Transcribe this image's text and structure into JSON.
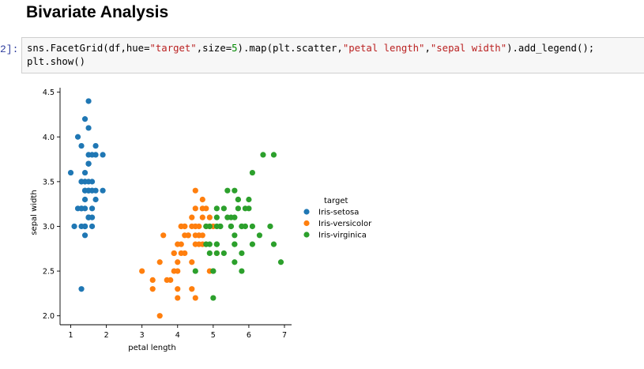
{
  "heading": "Bivariate Analysis",
  "cell": {
    "prompt": "2]:",
    "code": {
      "l1_a": "sns.FacetGrid(df,hue=",
      "l1_b": "\"target\"",
      "l1_c": ",size=",
      "l1_d": "5",
      "l1_e": ").map(plt.scatter,",
      "l1_f": "\"petal length\"",
      "l1_g": ",",
      "l1_h": "\"sepal width\"",
      "l1_i": ").add_legend();",
      "l2": "plt.show()"
    }
  },
  "colors": {
    "setosa": "#1f77b4",
    "versicolor": "#ff7f0e",
    "virginica": "#2ca02c"
  },
  "chart_data": {
    "type": "scatter",
    "xlabel": "petal length",
    "ylabel": "sepal width",
    "xlim": [
      0.7,
      7.2
    ],
    "ylim": [
      1.9,
      4.55
    ],
    "xticks": [
      "1",
      "2",
      "3",
      "4",
      "5",
      "6",
      "7"
    ],
    "yticks": [
      "2.0",
      "2.5",
      "3.0",
      "3.5",
      "4.0",
      "4.5"
    ],
    "legend_title": "target",
    "legend_position": "right",
    "series": [
      {
        "name": "Iris-setosa",
        "points": [
          [
            1.4,
            3.5
          ],
          [
            1.4,
            3.0
          ],
          [
            1.3,
            3.2
          ],
          [
            1.5,
            3.1
          ],
          [
            1.4,
            3.6
          ],
          [
            1.7,
            3.9
          ],
          [
            1.4,
            3.4
          ],
          [
            1.5,
            3.4
          ],
          [
            1.4,
            2.9
          ],
          [
            1.5,
            3.1
          ],
          [
            1.5,
            3.7
          ],
          [
            1.6,
            3.4
          ],
          [
            1.4,
            3.0
          ],
          [
            1.1,
            3.0
          ],
          [
            1.2,
            4.0
          ],
          [
            1.5,
            4.4
          ],
          [
            1.3,
            3.9
          ],
          [
            1.4,
            3.5
          ],
          [
            1.7,
            3.8
          ],
          [
            1.5,
            3.8
          ],
          [
            1.7,
            3.4
          ],
          [
            1.5,
            3.7
          ],
          [
            1.0,
            3.6
          ],
          [
            1.7,
            3.3
          ],
          [
            1.9,
            3.4
          ],
          [
            1.6,
            3.0
          ],
          [
            1.6,
            3.4
          ],
          [
            1.5,
            3.5
          ],
          [
            1.4,
            3.4
          ],
          [
            1.6,
            3.2
          ],
          [
            1.6,
            3.1
          ],
          [
            1.5,
            3.4
          ],
          [
            1.5,
            4.1
          ],
          [
            1.4,
            4.2
          ],
          [
            1.5,
            3.1
          ],
          [
            1.2,
            3.2
          ],
          [
            1.3,
            3.5
          ],
          [
            1.3,
            3.0
          ],
          [
            1.5,
            3.4
          ],
          [
            1.3,
            3.5
          ],
          [
            1.3,
            2.3
          ],
          [
            1.3,
            3.2
          ],
          [
            1.6,
            3.5
          ],
          [
            1.9,
            3.8
          ],
          [
            1.4,
            3.0
          ],
          [
            1.6,
            3.8
          ],
          [
            1.4,
            3.2
          ],
          [
            1.5,
            3.7
          ],
          [
            1.4,
            3.3
          ]
        ]
      },
      {
        "name": "Iris-versicolor",
        "points": [
          [
            4.7,
            3.2
          ],
          [
            4.5,
            3.2
          ],
          [
            4.9,
            3.1
          ],
          [
            4.0,
            2.3
          ],
          [
            4.6,
            2.8
          ],
          [
            4.5,
            2.8
          ],
          [
            4.7,
            3.3
          ],
          [
            3.3,
            2.4
          ],
          [
            4.6,
            2.9
          ],
          [
            3.9,
            2.7
          ],
          [
            3.5,
            2.0
          ],
          [
            4.2,
            3.0
          ],
          [
            4.0,
            2.2
          ],
          [
            4.7,
            2.9
          ],
          [
            3.6,
            2.9
          ],
          [
            4.4,
            3.1
          ],
          [
            4.5,
            3.0
          ],
          [
            4.1,
            2.7
          ],
          [
            4.5,
            2.2
          ],
          [
            3.9,
            2.5
          ],
          [
            4.8,
            3.2
          ],
          [
            4.0,
            2.8
          ],
          [
            4.9,
            2.5
          ],
          [
            4.7,
            2.8
          ],
          [
            4.3,
            2.9
          ],
          [
            4.4,
            3.0
          ],
          [
            4.8,
            2.8
          ],
          [
            5.0,
            3.0
          ],
          [
            4.5,
            2.9
          ],
          [
            3.5,
            2.6
          ],
          [
            3.8,
            2.4
          ],
          [
            3.7,
            2.4
          ],
          [
            3.9,
            2.7
          ],
          [
            5.1,
            2.7
          ],
          [
            4.5,
            3.0
          ],
          [
            4.5,
            3.4
          ],
          [
            4.7,
            3.1
          ],
          [
            4.4,
            2.3
          ],
          [
            4.1,
            3.0
          ],
          [
            4.0,
            2.5
          ],
          [
            4.4,
            2.6
          ],
          [
            4.6,
            3.0
          ],
          [
            4.0,
            2.6
          ],
          [
            3.3,
            2.3
          ],
          [
            4.2,
            2.7
          ],
          [
            4.2,
            3.0
          ],
          [
            4.2,
            2.9
          ],
          [
            4.3,
            2.9
          ],
          [
            3.0,
            2.5
          ],
          [
            4.1,
            2.8
          ],
          [
            4.9,
            3.0
          ],
          [
            4.8,
            3.0
          ],
          [
            4.6,
            2.9
          ],
          [
            4.1,
            3.0
          ]
        ]
      },
      {
        "name": "Iris-virginica",
        "points": [
          [
            6.0,
            3.3
          ],
          [
            5.1,
            2.7
          ],
          [
            5.9,
            3.0
          ],
          [
            5.6,
            2.9
          ],
          [
            5.8,
            3.0
          ],
          [
            6.6,
            3.0
          ],
          [
            4.5,
            2.5
          ],
          [
            6.3,
            2.9
          ],
          [
            5.8,
            2.5
          ],
          [
            6.1,
            3.6
          ],
          [
            5.1,
            3.2
          ],
          [
            5.3,
            2.7
          ],
          [
            5.5,
            3.0
          ],
          [
            5.0,
            2.5
          ],
          [
            5.1,
            2.8
          ],
          [
            5.3,
            3.2
          ],
          [
            5.5,
            3.0
          ],
          [
            6.7,
            3.8
          ],
          [
            6.9,
            2.6
          ],
          [
            5.0,
            2.2
          ],
          [
            5.7,
            3.2
          ],
          [
            4.9,
            2.8
          ],
          [
            6.7,
            2.8
          ],
          [
            4.9,
            2.7
          ],
          [
            5.7,
            3.3
          ],
          [
            6.0,
            3.2
          ],
          [
            4.8,
            2.8
          ],
          [
            4.9,
            3.0
          ],
          [
            5.6,
            2.8
          ],
          [
            5.8,
            3.0
          ],
          [
            6.1,
            2.8
          ],
          [
            6.4,
            3.8
          ],
          [
            5.6,
            2.8
          ],
          [
            5.1,
            2.8
          ],
          [
            5.6,
            2.6
          ],
          [
            6.1,
            3.0
          ],
          [
            5.6,
            3.4
          ],
          [
            5.5,
            3.1
          ],
          [
            4.8,
            3.0
          ],
          [
            5.4,
            3.1
          ],
          [
            5.6,
            3.1
          ],
          [
            5.1,
            3.1
          ],
          [
            5.9,
            3.2
          ],
          [
            5.7,
            3.3
          ],
          [
            5.2,
            3.0
          ],
          [
            5.0,
            2.5
          ],
          [
            5.2,
            3.0
          ],
          [
            5.4,
            3.4
          ],
          [
            5.1,
            3.0
          ],
          [
            5.8,
            2.7
          ]
        ]
      }
    ]
  }
}
